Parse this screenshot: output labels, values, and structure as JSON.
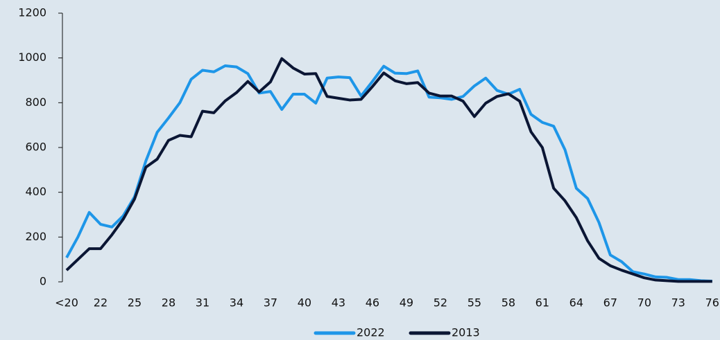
{
  "chart_data": {
    "type": "line",
    "categories": [
      "<20",
      null,
      null,
      "22",
      null,
      null,
      "25",
      null,
      null,
      "28",
      null,
      null,
      "31",
      null,
      null,
      "34",
      null,
      null,
      "37",
      null,
      null,
      "40",
      null,
      null,
      "43",
      null,
      null,
      "46",
      null,
      null,
      "49",
      null,
      null,
      "52",
      null,
      null,
      "55",
      null,
      null,
      "58",
      null,
      null,
      "61",
      null,
      null,
      "64",
      null,
      null,
      "67",
      null,
      null,
      "70",
      null,
      null,
      "73",
      null,
      null,
      "76"
    ],
    "series": [
      {
        "name": "2022",
        "color": "#1e96e8",
        "values": [
          108,
          200,
          310,
          257,
          245,
          295,
          380,
          540,
          668,
          732,
          800,
          905,
          945,
          938,
          965,
          960,
          930,
          843,
          850,
          770,
          838,
          838,
          798,
          910,
          915,
          912,
          830,
          895,
          963,
          932,
          930,
          942,
          825,
          822,
          815,
          828,
          875,
          910,
          855,
          838,
          860,
          748,
          712,
          695,
          590,
          418,
          372,
          265,
          120,
          90,
          45,
          35,
          22,
          20,
          10,
          10,
          5,
          3
        ]
      },
      {
        "name": "2013",
        "color": "#0b1634",
        "values": [
          52,
          100,
          148,
          148,
          210,
          280,
          370,
          512,
          548,
          632,
          654,
          648,
          762,
          755,
          808,
          845,
          895,
          848,
          893,
          997,
          955,
          928,
          930,
          828,
          820,
          812,
          815,
          872,
          933,
          898,
          885,
          890,
          843,
          830,
          830,
          807,
          738,
          798,
          828,
          840,
          807,
          670,
          600,
          418,
          362,
          287,
          183,
          105,
          72,
          52,
          35,
          18,
          8,
          5,
          2,
          2,
          2,
          2
        ]
      }
    ],
    "ylim": [
      0,
      1200
    ],
    "yticks": [
      0,
      200,
      400,
      600,
      800,
      1000,
      1200
    ],
    "legend": "bottom"
  }
}
